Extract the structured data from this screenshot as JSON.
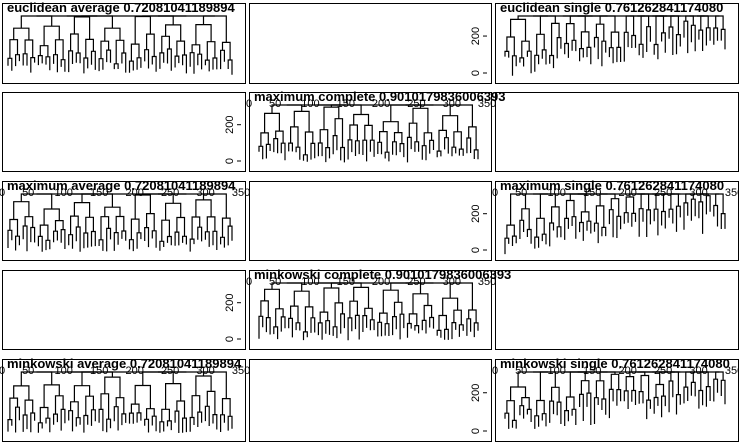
{
  "figure": {
    "grid": {
      "rows": 5,
      "cols": 3
    },
    "background": "#ffffff",
    "ink": "#000000"
  },
  "chart_data": [
    {
      "type": "dendrogram",
      "metric": "euclidean",
      "linkage": "average",
      "title": "euclidean average 0.72081041189894",
      "yticks": [],
      "xticks": []
    },
    {
      "type": "empty",
      "title": "",
      "yticks": [],
      "xticks": []
    },
    {
      "type": "dendrogram",
      "metric": "euclidean",
      "linkage": "single",
      "title": "euclidean single 0.761262841174080",
      "yticks": [
        "200",
        "0"
      ],
      "xticks": []
    },
    {
      "type": "empty",
      "title": "",
      "yticks": [],
      "xticks": []
    },
    {
      "type": "dendrogram",
      "metric": "maximum",
      "linkage": "complete",
      "title": "maximum complete 0.9010179836006393",
      "yticks": [
        "200",
        "0"
      ],
      "xticks": [
        "0",
        "50",
        "100",
        "150",
        "200",
        "250",
        "300",
        "350"
      ]
    },
    {
      "type": "empty",
      "title": "",
      "yticks": [],
      "xticks": []
    },
    {
      "type": "dendrogram",
      "metric": "maximum",
      "linkage": "average",
      "title": "maximum average 0.72081041189894",
      "yticks": [],
      "xticks": [
        "0",
        "50",
        "100",
        "150",
        "200",
        "250",
        "300",
        "350"
      ]
    },
    {
      "type": "empty",
      "title": "",
      "yticks": [],
      "xticks": []
    },
    {
      "type": "dendrogram",
      "metric": "maximum",
      "linkage": "single",
      "title": "maximum single 0.761262841174080",
      "yticks": [
        "200",
        "0"
      ],
      "xticks": [
        "0",
        "50",
        "100",
        "150",
        "200",
        "250",
        "300",
        "350"
      ]
    },
    {
      "type": "empty",
      "title": "",
      "yticks": [],
      "xticks": []
    },
    {
      "type": "dendrogram",
      "metric": "minkowski",
      "linkage": "complete",
      "title": "minkowski complete 0.9010179836006393",
      "yticks": [
        "200",
        "0"
      ],
      "xticks": [
        "0",
        "50",
        "100",
        "150",
        "200",
        "250",
        "300",
        "350"
      ]
    },
    {
      "type": "empty",
      "title": "",
      "yticks": [],
      "xticks": []
    },
    {
      "type": "dendrogram",
      "metric": "minkowski",
      "linkage": "average",
      "title": "minkowski average 0.72081041189894",
      "yticks": [],
      "xticks": [
        "0",
        "50",
        "100",
        "150",
        "200",
        "250",
        "300",
        "350"
      ]
    },
    {
      "type": "empty",
      "title": "",
      "yticks": [],
      "xticks": []
    },
    {
      "type": "dendrogram",
      "metric": "minkowski",
      "linkage": "single",
      "title": "minkowski single 0.761262841174080",
      "yticks": [
        "200",
        "0"
      ],
      "xticks": [
        "0",
        "50",
        "100",
        "150",
        "200",
        "250",
        "300",
        "350"
      ]
    }
  ]
}
